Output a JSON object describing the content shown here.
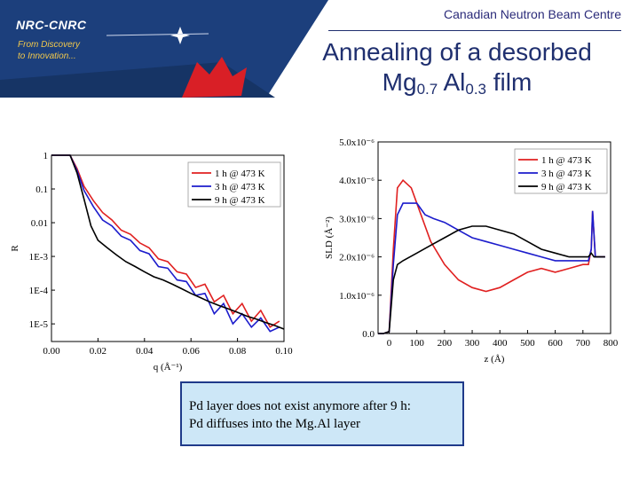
{
  "header": {
    "logo": "NRC-CNRC",
    "slogan_line1": "From Discovery",
    "slogan_line2": "to Innovation...",
    "centre_name": "Canadian Neutron Beam Centre",
    "title_line1": "Annealing of a desorbed",
    "title_mg": "Mg",
    "title_mg_sub": "0.7",
    "title_al": " Al",
    "title_al_sub": "0.3",
    "title_end": " film"
  },
  "colors": {
    "red": "#e02020",
    "blue": "#1c1ccc",
    "black": "#000000",
    "navy": "#1f2f6f",
    "banner": "#1c3f7c"
  },
  "note": {
    "line1": "Pd layer does not exist anymore after 9 h:",
    "line2": "Pd diffuses into the Mg.Al layer"
  },
  "chart_data": [
    {
      "type": "line",
      "scale_y": "log",
      "xlabel": "q (Å⁻¹)",
      "ylabel": "R",
      "xlim": [
        0.0,
        0.1
      ],
      "ylim": [
        3e-06,
        1.0
      ],
      "x_ticks": [
        "0.00",
        "0.02",
        "0.04",
        "0.06",
        "0.08",
        "0.10"
      ],
      "y_ticks": [
        "1",
        "0.1",
        "0.01",
        "1E-3",
        "1E-4",
        "1E-5"
      ],
      "legend_position": "top-right",
      "series": [
        {
          "name": "1 h @ 473 K",
          "color": "#e02020",
          "x": [
            0.0,
            0.008,
            0.011,
            0.014,
            0.018,
            0.022,
            0.026,
            0.03,
            0.034,
            0.038,
            0.042,
            0.046,
            0.05,
            0.054,
            0.058,
            0.062,
            0.066,
            0.07,
            0.074,
            0.078,
            0.082,
            0.086,
            0.09,
            0.094,
            0.098
          ],
          "y": [
            1.0,
            1.0,
            0.4,
            0.12,
            0.045,
            0.02,
            0.012,
            0.006,
            0.0045,
            0.0025,
            0.0018,
            0.00085,
            0.0007,
            0.00035,
            0.0003,
            0.00012,
            0.00015,
            4.5e-05,
            7e-05,
            2e-05,
            4e-05,
            1.2e-05,
            2.5e-05,
            8e-06,
            1.2e-05
          ]
        },
        {
          "name": "3 h @ 473 K",
          "color": "#1c1ccc",
          "x": [
            0.0,
            0.008,
            0.011,
            0.014,
            0.018,
            0.022,
            0.026,
            0.03,
            0.034,
            0.038,
            0.042,
            0.046,
            0.05,
            0.054,
            0.058,
            0.062,
            0.066,
            0.07,
            0.074,
            0.078,
            0.082,
            0.086,
            0.09,
            0.094,
            0.098
          ],
          "y": [
            1.0,
            1.0,
            0.35,
            0.09,
            0.03,
            0.012,
            0.008,
            0.004,
            0.003,
            0.0015,
            0.0012,
            0.0005,
            0.00045,
            0.0002,
            0.00018,
            7e-05,
            8e-05,
            2e-05,
            4e-05,
            1e-05,
            2e-05,
            8e-06,
            1.5e-05,
            6e-06,
            8e-06
          ]
        },
        {
          "name": "9 h @ 473 K",
          "color": "#000000",
          "x": [
            0.0,
            0.008,
            0.011,
            0.014,
            0.017,
            0.02,
            0.024,
            0.028,
            0.032,
            0.036,
            0.04,
            0.044,
            0.048,
            0.052,
            0.056,
            0.06,
            0.064,
            0.068,
            0.072,
            0.076,
            0.08,
            0.084,
            0.088,
            0.092,
            0.096,
            0.1
          ],
          "y": [
            1.0,
            1.0,
            0.3,
            0.05,
            0.008,
            0.003,
            0.0018,
            0.0011,
            0.0007,
            0.0005,
            0.00035,
            0.00025,
            0.0002,
            0.00015,
            0.00011,
            8e-05,
            6e-05,
            4.5e-05,
            3.5e-05,
            2.8e-05,
            2.2e-05,
            1.7e-05,
            1.4e-05,
            1.1e-05,
            9e-06,
            7e-06
          ]
        }
      ]
    },
    {
      "type": "line",
      "xlabel": "z (Å)",
      "ylabel": "SLD (Å⁻²)",
      "xlim": [
        -40,
        800
      ],
      "ylim": [
        0.0,
        5e-06
      ],
      "x_ticks": [
        "0",
        "100",
        "200",
        "300",
        "400",
        "500",
        "600",
        "700",
        "800"
      ],
      "y_ticks": [
        "0.0",
        "1.0x10⁻⁶",
        "2.0x10⁻⁶",
        "3.0x10⁻⁶",
        "4.0x10⁻⁶",
        "5.0x10⁻⁶"
      ],
      "legend_position": "top-right",
      "series": [
        {
          "name": "1 h @ 473 K",
          "color": "#e02020",
          "x": [
            -40,
            -20,
            0,
            15,
            30,
            50,
            80,
            110,
            150,
            200,
            250,
            300,
            350,
            400,
            450,
            500,
            550,
            600,
            650,
            700,
            720,
            730,
            735,
            745,
            760,
            780
          ],
          "y": [
            0,
            0,
            5e-08,
            2.2e-06,
            3.8e-06,
            4e-06,
            3.8e-06,
            3.2e-06,
            2.4e-06,
            1.8e-06,
            1.4e-06,
            1.2e-06,
            1.1e-06,
            1.2e-06,
            1.4e-06,
            1.6e-06,
            1.7e-06,
            1.6e-06,
            1.7e-06,
            1.8e-06,
            1.8e-06,
            2.2e-06,
            3.2e-06,
            2e-06,
            2e-06,
            2e-06
          ]
        },
        {
          "name": "3 h @ 473 K",
          "color": "#1c1ccc",
          "x": [
            -40,
            -20,
            0,
            15,
            30,
            50,
            100,
            130,
            160,
            200,
            250,
            300,
            350,
            400,
            450,
            500,
            550,
            600,
            650,
            700,
            720,
            730,
            735,
            745,
            760,
            780
          ],
          "y": [
            0,
            0,
            5e-08,
            1.8e-06,
            3.1e-06,
            3.4e-06,
            3.4e-06,
            3.1e-06,
            3e-06,
            2.9e-06,
            2.7e-06,
            2.5e-06,
            2.4e-06,
            2.3e-06,
            2.2e-06,
            2.1e-06,
            2e-06,
            1.9e-06,
            1.9e-06,
            1.9e-06,
            1.9e-06,
            2.2e-06,
            3.2e-06,
            2e-06,
            2e-06,
            2e-06
          ]
        },
        {
          "name": "9 h @ 473 K",
          "color": "#000000",
          "x": [
            -40,
            -20,
            0,
            15,
            30,
            50,
            100,
            150,
            200,
            250,
            300,
            350,
            400,
            450,
            500,
            550,
            600,
            650,
            700,
            720,
            730,
            740,
            760,
            780
          ],
          "y": [
            0,
            0,
            5e-08,
            1.4e-06,
            1.8e-06,
            1.9e-06,
            2.1e-06,
            2.3e-06,
            2.5e-06,
            2.7e-06,
            2.8e-06,
            2.8e-06,
            2.7e-06,
            2.6e-06,
            2.4e-06,
            2.2e-06,
            2.1e-06,
            2e-06,
            2e-06,
            2e-06,
            2.1e-06,
            2e-06,
            2e-06,
            2e-06
          ]
        }
      ]
    }
  ]
}
